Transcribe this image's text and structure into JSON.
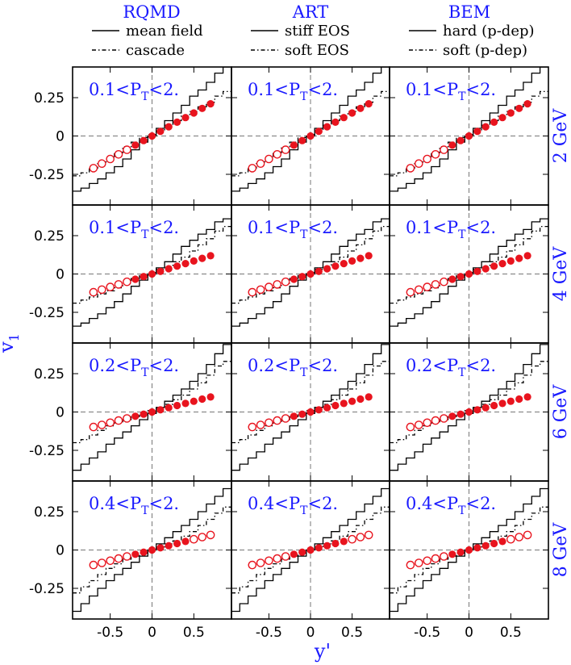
{
  "chart_data": {
    "type": "line",
    "grid": "3x4 panels",
    "columns": [
      {
        "title": "RQMD",
        "legend": [
          {
            "style": "solid",
            "label": "mean field"
          },
          {
            "style": "dashdot",
            "label": "cascade"
          }
        ]
      },
      {
        "title": "ART",
        "legend": [
          {
            "style": "solid",
            "label": "stiff EOS"
          },
          {
            "style": "dashdot",
            "label": "soft EOS"
          }
        ]
      },
      {
        "title": "BEM",
        "legend": [
          {
            "style": "solid",
            "label": "hard (p-dep)"
          },
          {
            "style": "dashdot",
            "label": "soft (p-dep)"
          }
        ]
      }
    ],
    "rows": [
      {
        "energy": "2 GeV",
        "cut": "0.1<P",
        "cut_sub": "T",
        "cut_tail": "<2."
      },
      {
        "energy": "4 GeV",
        "cut": "0.1<P",
        "cut_sub": "T",
        "cut_tail": "<2."
      },
      {
        "energy": "6 GeV",
        "cut": "0.2<P",
        "cut_sub": "T",
        "cut_tail": "<2."
      },
      {
        "energy": "8 GeV",
        "cut": "0.4<P",
        "cut_sub": "T",
        "cut_tail": "<2."
      }
    ],
    "ylabel": "v",
    "ylabel_sub": "1",
    "xlabel": "y'",
    "xlim": [
      -0.95,
      0.95
    ],
    "ylim": [
      -0.45,
      0.45
    ],
    "x_ticks": [
      -0.5,
      0,
      0.5
    ],
    "x_tick_labels": [
      "-0.5",
      "0",
      "0.5"
    ],
    "y_ticks": [
      0.25,
      0,
      -0.25
    ],
    "y_tick_labels": [
      "0.25",
      "0",
      "-0.25"
    ],
    "data_points_x": [
      -0.7,
      -0.6,
      -0.5,
      -0.4,
      -0.3,
      -0.2,
      -0.1,
      0.0,
      0.1,
      0.2,
      0.3,
      0.4,
      0.5,
      0.6,
      0.7
    ],
    "data_slopes": [
      0.3,
      0.17,
      0.14,
      0.14
    ],
    "open_points_side": [
      "negative",
      "negative",
      "negative",
      "both"
    ],
    "model_curves": {
      "x_bins": [
        -0.9,
        -0.8,
        -0.7,
        -0.6,
        -0.5,
        -0.4,
        -0.3,
        -0.2,
        -0.1,
        0.0,
        0.1,
        0.2,
        0.3,
        0.4,
        0.5,
        0.6,
        0.7,
        0.8,
        0.9
      ],
      "panels": [
        [
          {
            "solid": [
              -0.36,
              -0.34,
              -0.31,
              -0.28,
              -0.24,
              -0.2,
              -0.15,
              -0.09,
              -0.04,
              0.0,
              0.05,
              0.1,
              0.15,
              0.2,
              0.26,
              0.3,
              0.35,
              0.41,
              0.45
            ],
            "dashdot": [
              -0.26,
              -0.24,
              -0.21,
              -0.18,
              -0.15,
              -0.11,
              -0.07,
              -0.04,
              -0.01,
              0.01,
              0.04,
              0.07,
              0.1,
              0.13,
              0.16,
              0.19,
              0.22,
              0.26,
              0.29
            ]
          },
          {
            "solid": [
              -0.36,
              -0.34,
              -0.31,
              -0.28,
              -0.24,
              -0.2,
              -0.15,
              -0.09,
              -0.04,
              0.0,
              0.05,
              0.1,
              0.15,
              0.2,
              0.26,
              0.3,
              0.35,
              0.41,
              0.45
            ],
            "dashdot": [
              -0.26,
              -0.24,
              -0.21,
              -0.18,
              -0.15,
              -0.11,
              -0.07,
              -0.04,
              -0.01,
              0.01,
              0.04,
              0.07,
              0.1,
              0.13,
              0.16,
              0.19,
              0.22,
              0.26,
              0.29
            ]
          },
          {
            "solid": [
              -0.36,
              -0.34,
              -0.31,
              -0.28,
              -0.24,
              -0.2,
              -0.15,
              -0.09,
              -0.04,
              0.0,
              0.05,
              0.1,
              0.15,
              0.2,
              0.26,
              0.3,
              0.35,
              0.41,
              0.45
            ],
            "dashdot": [
              -0.26,
              -0.24,
              -0.21,
              -0.18,
              -0.15,
              -0.11,
              -0.07,
              -0.04,
              -0.01,
              0.01,
              0.04,
              0.07,
              0.1,
              0.13,
              0.16,
              0.19,
              0.22,
              0.26,
              0.29
            ]
          }
        ],
        [
          {
            "solid": [
              -0.34,
              -0.32,
              -0.29,
              -0.26,
              -0.22,
              -0.18,
              -0.13,
              -0.08,
              -0.04,
              0.0,
              0.04,
              0.08,
              0.13,
              0.18,
              0.22,
              0.26,
              0.29,
              0.34,
              0.36
            ],
            "dashdot": [
              -0.19,
              -0.17,
              -0.15,
              -0.13,
              -0.11,
              -0.09,
              -0.06,
              -0.03,
              -0.01,
              0.01,
              0.03,
              0.05,
              0.08,
              0.11,
              0.15,
              0.19,
              0.23,
              0.28,
              0.31
            ]
          },
          {
            "solid": [
              -0.34,
              -0.32,
              -0.29,
              -0.26,
              -0.22,
              -0.18,
              -0.13,
              -0.08,
              -0.04,
              0.0,
              0.04,
              0.08,
              0.13,
              0.18,
              0.22,
              0.26,
              0.29,
              0.34,
              0.36
            ],
            "dashdot": [
              -0.19,
              -0.17,
              -0.15,
              -0.13,
              -0.11,
              -0.09,
              -0.06,
              -0.03,
              -0.01,
              0.01,
              0.03,
              0.05,
              0.08,
              0.11,
              0.15,
              0.19,
              0.23,
              0.28,
              0.31
            ]
          },
          {
            "solid": [
              -0.34,
              -0.32,
              -0.29,
              -0.26,
              -0.22,
              -0.18,
              -0.13,
              -0.08,
              -0.04,
              0.0,
              0.04,
              0.08,
              0.13,
              0.18,
              0.22,
              0.26,
              0.29,
              0.34,
              0.36
            ],
            "dashdot": [
              -0.19,
              -0.17,
              -0.15,
              -0.13,
              -0.11,
              -0.09,
              -0.06,
              -0.03,
              -0.01,
              0.01,
              0.03,
              0.05,
              0.08,
              0.11,
              0.15,
              0.19,
              0.23,
              0.28,
              0.31
            ]
          }
        ],
        [
          {
            "solid": [
              -0.38,
              -0.34,
              -0.3,
              -0.26,
              -0.21,
              -0.17,
              -0.13,
              -0.09,
              -0.05,
              -0.01,
              0.03,
              0.07,
              0.11,
              0.15,
              0.2,
              0.25,
              0.31,
              0.38,
              0.44
            ],
            "dashdot": [
              -0.2,
              -0.18,
              -0.15,
              -0.12,
              -0.09,
              -0.07,
              -0.05,
              -0.03,
              -0.01,
              0.01,
              0.03,
              0.05,
              0.08,
              0.11,
              0.15,
              0.19,
              0.24,
              0.3,
              0.33
            ]
          },
          {
            "solid": [
              -0.38,
              -0.34,
              -0.3,
              -0.26,
              -0.21,
              -0.17,
              -0.13,
              -0.09,
              -0.05,
              -0.01,
              0.03,
              0.07,
              0.11,
              0.15,
              0.2,
              0.25,
              0.31,
              0.38,
              0.44
            ],
            "dashdot": [
              -0.2,
              -0.18,
              -0.15,
              -0.12,
              -0.09,
              -0.07,
              -0.05,
              -0.03,
              -0.01,
              0.01,
              0.03,
              0.05,
              0.08,
              0.11,
              0.15,
              0.19,
              0.24,
              0.3,
              0.33
            ]
          },
          {
            "solid": [
              -0.38,
              -0.34,
              -0.3,
              -0.26,
              -0.21,
              -0.17,
              -0.13,
              -0.09,
              -0.05,
              -0.01,
              0.03,
              0.07,
              0.11,
              0.15,
              0.2,
              0.25,
              0.31,
              0.38,
              0.44
            ],
            "dashdot": [
              -0.2,
              -0.18,
              -0.15,
              -0.12,
              -0.09,
              -0.07,
              -0.05,
              -0.03,
              -0.01,
              0.01,
              0.03,
              0.05,
              0.08,
              0.11,
              0.15,
              0.19,
              0.24,
              0.3,
              0.33
            ]
          }
        ],
        [
          {
            "solid": [
              -0.4,
              -0.35,
              -0.3,
              -0.25,
              -0.2,
              -0.16,
              -0.12,
              -0.08,
              -0.04,
              0.0,
              0.04,
              0.08,
              0.12,
              0.16,
              0.2,
              0.25,
              0.3,
              0.35,
              0.4
            ],
            "dashdot": [
              -0.28,
              -0.24,
              -0.2,
              -0.16,
              -0.12,
              -0.09,
              -0.06,
              -0.04,
              -0.02,
              0.0,
              0.02,
              0.04,
              0.06,
              0.09,
              0.12,
              0.16,
              0.2,
              0.24,
              0.28
            ]
          },
          {
            "solid": [
              -0.4,
              -0.35,
              -0.3,
              -0.25,
              -0.2,
              -0.16,
              -0.12,
              -0.08,
              -0.04,
              0.0,
              0.04,
              0.08,
              0.12,
              0.16,
              0.2,
              0.25,
              0.3,
              0.35,
              0.4
            ],
            "dashdot": [
              -0.28,
              -0.24,
              -0.2,
              -0.16,
              -0.12,
              -0.09,
              -0.06,
              -0.04,
              -0.02,
              0.0,
              0.02,
              0.04,
              0.06,
              0.09,
              0.12,
              0.16,
              0.2,
              0.24,
              0.28
            ]
          },
          {
            "solid": [
              -0.4,
              -0.35,
              -0.3,
              -0.25,
              -0.2,
              -0.16,
              -0.12,
              -0.08,
              -0.04,
              0.0,
              0.04,
              0.08,
              0.12,
              0.16,
              0.2,
              0.25,
              0.3,
              0.35,
              0.4
            ],
            "dashdot": [
              -0.28,
              -0.24,
              -0.2,
              -0.16,
              -0.12,
              -0.09,
              -0.06,
              -0.04,
              -0.02,
              0.0,
              0.02,
              0.04,
              0.06,
              0.09,
              0.12,
              0.16,
              0.2,
              0.24,
              0.28
            ]
          }
        ]
      ]
    },
    "colors": {
      "text_accent": "#1a1aff",
      "points": "#e8141e",
      "curves": "#000000",
      "zero_lines": "#777777"
    }
  }
}
